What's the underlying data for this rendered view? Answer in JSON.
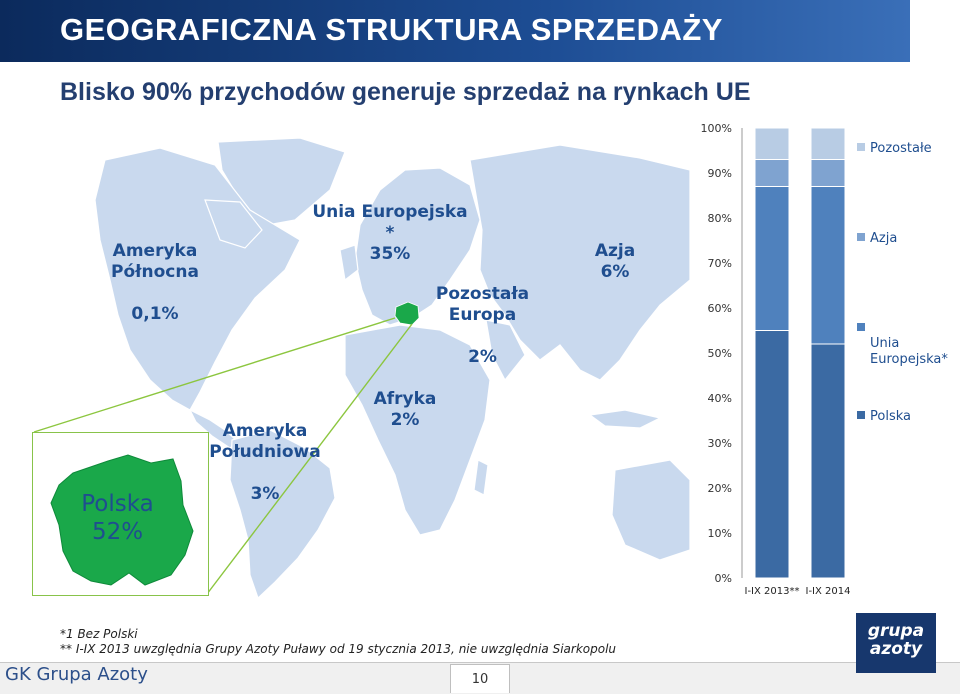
{
  "header": {
    "title": "GEOGRAFICZNA STRUKTURA SPRZEDAŻY"
  },
  "subtitle": "Blisko 90% przychodów generuje sprzedaż na rynkach UE",
  "map": {
    "regions": [
      {
        "name": "Ameryka\nPółnocna",
        "value": "0,1%"
      },
      {
        "name": "Unia Europejska *",
        "value": "35%"
      },
      {
        "name": "Pozostała\nEuropa",
        "value": "2%"
      },
      {
        "name": "Azja",
        "value": "6%"
      },
      {
        "name": "Ameryka\nPołudniowa",
        "value": "3%"
      },
      {
        "name": "Afryka",
        "value": "2%"
      }
    ],
    "poland": {
      "name": "Polska",
      "value": "52%"
    },
    "colors": {
      "land": "#c9d9ee",
      "ocean": "#ffffff",
      "poland": "#1aa84a",
      "connector": "#8cc63f"
    }
  },
  "chart_data": {
    "type": "bar",
    "stacked": true,
    "categories": [
      "I-IX 2013**",
      "I-IX 2014"
    ],
    "series": [
      {
        "name": "Polska",
        "values": [
          55,
          52
        ],
        "color": "#3b6aa3"
      },
      {
        "name": "Unia Europejska*",
        "values": [
          32,
          35
        ],
        "color": "#4f81bd"
      },
      {
        "name": "Azja",
        "values": [
          6,
          6
        ],
        "color": "#7fa3d0"
      },
      {
        "name": "Pozostałe",
        "values": [
          7,
          7
        ],
        "color": "#b8cce4"
      }
    ],
    "yticks": [
      "0%",
      "10%",
      "20%",
      "30%",
      "40%",
      "50%",
      "60%",
      "70%",
      "80%",
      "90%",
      "100%"
    ],
    "ylim": [
      0,
      100
    ],
    "legend_position": "right"
  },
  "legend": [
    {
      "label": "Pozostałe",
      "color": "#b8cce4"
    },
    {
      "label": "Azja",
      "color": "#7fa3d0"
    },
    {
      "label": "Unia\nEuropejska*",
      "color": "#4f81bd"
    },
    {
      "label": "Polska",
      "color": "#3b6aa3"
    }
  ],
  "footnotes": {
    "line1": "*1 Bez Polski",
    "line2": "** I-IX 2013 uwzględnia Grupy Azoty Puławy od 19 stycznia 2013, nie uwzględnia Siarkopolu"
  },
  "footer": {
    "company": "GK Grupa Azoty",
    "page": "10"
  },
  "logo": {
    "line1": "grupa",
    "line2": "azoty"
  }
}
